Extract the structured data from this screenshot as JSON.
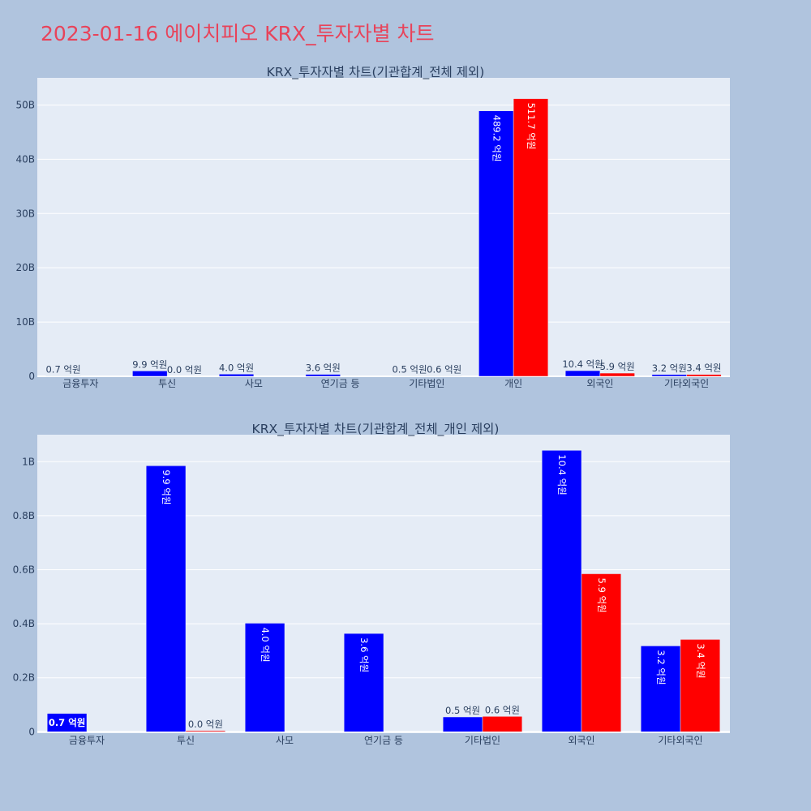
{
  "page": {
    "title": "2023-01-16 에이치피오 KRX_투자자별 차트",
    "background": "#b0c4de",
    "title_color": "#e8435a"
  },
  "colors": {
    "series_blue": "#0000ff",
    "series_red": "#ff0000",
    "plot_bg": "#e5ecf6",
    "grid": "#ffffff",
    "text": "#2a3f5f"
  },
  "chart_data": [
    {
      "type": "bar",
      "title": "KRX_투자자별 차트(기관합계_전체 제외)",
      "categories": [
        "금융투자",
        "투신",
        "사모",
        "연기금 등",
        "기타법인",
        "개인",
        "외국인",
        "기타외국인"
      ],
      "series": [
        {
          "color": "#0000ff",
          "values": [
            0.07,
            0.99,
            0.4,
            0.36,
            0.05,
            48.92,
            1.04,
            0.32
          ],
          "labels": [
            "0.7 억원",
            "9.9 억원",
            "4.0 억원",
            "3.6 억원",
            "0.5 억원",
            "489.2 억원",
            "10.4 억원",
            "3.2 억원"
          ]
        },
        {
          "color": "#ff0000",
          "values": [
            0.0,
            0.0,
            0.0,
            0.0,
            0.06,
            51.17,
            0.59,
            0.34
          ],
          "labels": [
            "",
            "0.0 억원",
            "",
            "",
            "0.6 억원",
            "511.7 억원",
            "5.9 억원",
            "3.4 억원"
          ]
        }
      ],
      "ylim": [
        0,
        55
      ],
      "yticks": [
        0,
        10,
        20,
        30,
        40,
        50
      ],
      "ytick_labels": [
        "0",
        "10B",
        "20B",
        "30B",
        "40B",
        "50B"
      ],
      "grid": true,
      "legend": "none"
    },
    {
      "type": "bar",
      "title": "KRX_투자자별 차트(기관합계_전체_개인 제외)",
      "categories": [
        "금융투자",
        "투신",
        "사모",
        "연기금 등",
        "기타법인",
        "외국인",
        "기타외국인"
      ],
      "series": [
        {
          "color": "#0000ff",
          "values": [
            0.068,
            0.985,
            0.402,
            0.364,
            0.055,
            1.042,
            0.318
          ],
          "labels": [
            "0.7 억원",
            "9.9 억원",
            "4.0 억원",
            "3.6 억원",
            "0.5 억원",
            "10.4 억원",
            "3.2 억원"
          ]
        },
        {
          "color": "#ff0000",
          "values": [
            0.0,
            0.004,
            0.0,
            0.0,
            0.057,
            0.585,
            0.342
          ],
          "labels": [
            "",
            "0.0 억원",
            "",
            "",
            "0.6 억원",
            "5.9 억원",
            "3.4 억원"
          ]
        }
      ],
      "ylim": [
        -0.005,
        1.1
      ],
      "yticks": [
        0,
        0.2,
        0.4,
        0.6,
        0.8,
        1.0
      ],
      "ytick_labels": [
        "0",
        "0.2B",
        "0.4B",
        "0.6B",
        "0.8B",
        "1B"
      ],
      "grid": true,
      "legend": "none"
    }
  ]
}
